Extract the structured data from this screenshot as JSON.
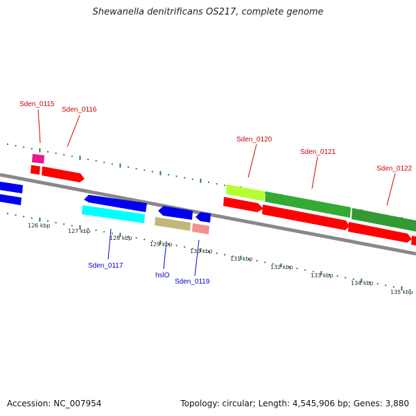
{
  "title": "Shewanella denitrificans OS217, complete genome",
  "footer": {
    "accession": "Accession: NC_007954",
    "summary": "Topology: circular; Length: 4,545,906 bp; Genes: 3,880"
  },
  "kbp_ticks": [
    "126 kbp",
    "127 kbp",
    "128 kbp",
    "129 kbp",
    "130 kbp",
    "131 kbp",
    "132 kbp",
    "133 kbp",
    "134 kbp",
    "135 kbp"
  ],
  "gene_labels": {
    "sden_0115": "Sden_0115",
    "sden_0116": "Sden_0116",
    "sden_0117": "Sden_0117",
    "hslo": "hslO",
    "sden_0119": "Sden_0119",
    "sden_0120": "Sden_0120",
    "sden_0121": "Sden_0121",
    "sden_0122": "Sden_0122"
  },
  "colors": {
    "forward_label": "#cc0000",
    "reverse_label": "#0000cc",
    "backbone": "#888888",
    "tick": "#228822"
  }
}
